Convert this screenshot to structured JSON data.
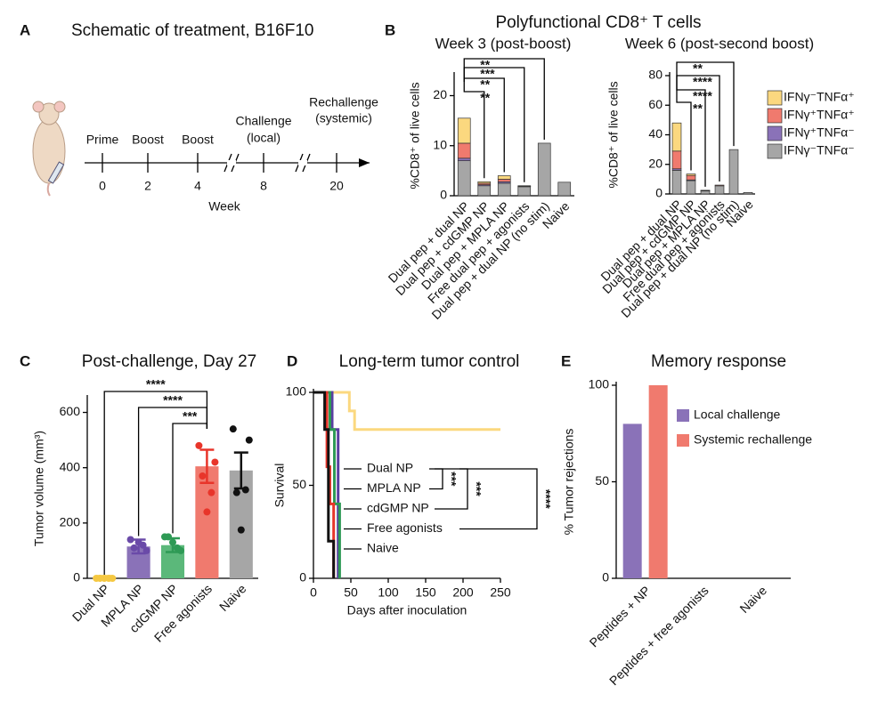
{
  "schematic": {
    "panel": "A",
    "title": "Schematic of treatment, B16F10",
    "axis_label": "Week",
    "events": [
      {
        "label": [
          "Prime"
        ],
        "week": 0
      },
      {
        "label": [
          "Boost"
        ],
        "week": 2
      },
      {
        "label": [
          "Boost"
        ],
        "week": 4
      },
      {
        "label": [
          "Challenge",
          "(local)"
        ],
        "week": 8
      },
      {
        "label": [
          "Rechallenge",
          "(systemic)"
        ],
        "week": 20
      }
    ]
  },
  "panel_b": {
    "panel": "B",
    "title": "Polyfunctional CD8⁺ T cells"
  },
  "chart_data": [
    {
      "type": "stacked_bar",
      "title": "Week 3 (post-boost)",
      "ylabel": "%CD8⁺ of live cells",
      "categories": [
        "Dual pep + dual NP",
        "Dual pep + cdGMP NP",
        "Dual pep + MPLA NP",
        "Free dual pep + agonists",
        "Dual pep + dual NP (no stim)",
        "Naive"
      ],
      "series": [
        {
          "name": "IFNγ⁻TNFα⁻",
          "color": "#a6a6a6",
          "values": [
            7,
            2,
            2.5,
            1.8,
            10.5,
            2.7
          ]
        },
        {
          "name": "IFNγ⁺TNFα⁻",
          "color": "#8a72b8",
          "values": [
            0.5,
            0.2,
            0.3,
            0.1,
            0,
            0
          ]
        },
        {
          "name": "IFNγ⁺TNFα⁺",
          "color": "#f07a6e",
          "values": [
            3,
            0.3,
            0.5,
            0.05,
            0,
            0
          ]
        },
        {
          "name": "IFNγ⁻TNFα⁺",
          "color": "#fbd87f",
          "values": [
            5,
            0.3,
            0.7,
            0.05,
            0,
            0
          ]
        }
      ],
      "ylim": [
        0,
        24
      ],
      "yticks": [
        0,
        10,
        20
      ],
      "comparisons": [
        {
          "from": 0,
          "to": 1,
          "label": "**"
        },
        {
          "from": 0,
          "to": 2,
          "label": "**"
        },
        {
          "from": 0,
          "to": 3,
          "label": "***"
        },
        {
          "from": 0,
          "to": 4,
          "label": "**"
        }
      ]
    },
    {
      "type": "stacked_bar",
      "title": "Week 6 (post-second boost)",
      "ylabel": "%CD8⁺ of live cells",
      "categories": [
        "Dual pep + dual NP",
        "Dual pep + cdGMP NP",
        "Dual pep + MPLA NP",
        "Free dual pep + agonists",
        "Dual pep + dual NP (no stim)",
        "Naive"
      ],
      "series": [
        {
          "name": "IFNγ⁻TNFα⁻",
          "color": "#a6a6a6",
          "values": [
            16,
            9,
            2,
            5.5,
            30,
            1
          ]
        },
        {
          "name": "IFNγ⁺TNFα⁻",
          "color": "#8a72b8",
          "values": [
            1,
            0.5,
            0.2,
            0,
            0,
            0
          ]
        },
        {
          "name": "IFNγ⁺TNFα⁺",
          "color": "#f07a6e",
          "values": [
            12,
            3,
            0.2,
            0.5,
            0,
            0
          ]
        },
        {
          "name": "IFNγ⁻TNFα⁺",
          "color": "#fbd87f",
          "values": [
            19,
            1,
            0.1,
            0,
            0,
            0
          ]
        }
      ],
      "ylim": [
        0,
        80
      ],
      "yticks": [
        0,
        20,
        40,
        60,
        80
      ],
      "comparisons": [
        {
          "from": 0,
          "to": 1,
          "label": "**"
        },
        {
          "from": 0,
          "to": 2,
          "label": "****"
        },
        {
          "from": 0,
          "to": 3,
          "label": "****"
        },
        {
          "from": 0,
          "to": 4,
          "label": "**"
        }
      ]
    },
    {
      "type": "bar_scatter",
      "panel": "C",
      "title": "Post-challenge, Day 27",
      "ylabel": "Tumor volume (mm³)",
      "categories": [
        "Dual NP",
        "MPLA NP",
        "cdGMP NP",
        "Free agonists",
        "Naive"
      ],
      "colors": [
        "#fbd87f",
        "#8a72b8",
        "#5bb87a",
        "#f07a6e",
        "#a6a6a6"
      ],
      "point_colors": [
        "#f5c842",
        "#6a4aa8",
        "#2e9a55",
        "#e8352a",
        "#111111"
      ],
      "values": [
        5,
        115,
        120,
        405,
        390
      ],
      "errors": [
        3,
        25,
        25,
        60,
        65
      ],
      "points": [
        [
          0,
          0,
          0,
          0,
          0
        ],
        [
          140,
          100,
          110,
          120,
          130
        ],
        [
          150,
          100,
          150,
          110,
          130
        ],
        [
          480,
          420,
          370,
          310,
          240
        ],
        [
          540,
          500,
          310,
          320,
          175
        ]
      ],
      "ylim": [
        0,
        650
      ],
      "yticks": [
        0,
        200,
        400,
        600
      ],
      "comparisons": [
        {
          "from": 0,
          "to": 3,
          "label": "****"
        },
        {
          "from": 1,
          "to": 3,
          "label": "****"
        },
        {
          "from": 2,
          "to": 3,
          "label": "***"
        }
      ]
    },
    {
      "type": "survival",
      "panel": "D",
      "title": "Long-term tumor control",
      "xlabel": "Days after inoculation",
      "ylabel": "Survival",
      "xlim": [
        0,
        250
      ],
      "xticks": [
        0,
        50,
        100,
        150,
        200,
        250
      ],
      "ylim": [
        0,
        100
      ],
      "yticks": [
        0,
        50,
        100
      ],
      "series": [
        {
          "name": "Dual NP",
          "color": "#fbd87f",
          "x": [
            0,
            48,
            55,
            250
          ],
          "values": [
            100,
            90,
            80,
            80
          ]
        },
        {
          "name": "MPLA NP",
          "color": "#5a3ea0",
          "x": [
            0,
            25,
            33
          ],
          "values": [
            100,
            80,
            0
          ]
        },
        {
          "name": "cdGMP NP",
          "color": "#2e9a55",
          "x": [
            0,
            22,
            28,
            35
          ],
          "values": [
            100,
            80,
            40,
            0
          ]
        },
        {
          "name": "Free agonists",
          "color": "#e8352a",
          "x": [
            0,
            18,
            22,
            27
          ],
          "values": [
            100,
            60,
            40,
            0
          ]
        },
        {
          "name": "Naive",
          "color": "#111111",
          "x": [
            0,
            15,
            20,
            27
          ],
          "values": [
            100,
            80,
            20,
            0
          ]
        }
      ],
      "comparisons": [
        {
          "from": 0,
          "to": 1,
          "label": "***"
        },
        {
          "from": 0,
          "to": 2,
          "label": "***"
        },
        {
          "from": 0,
          "to": 3,
          "label": "****"
        }
      ]
    },
    {
      "type": "grouped_bar",
      "panel": "E",
      "title": "Memory response",
      "ylabel": "% Tumor rejections",
      "categories": [
        "Peptides + NP",
        "Peptides + free agonists",
        "Naive"
      ],
      "series": [
        {
          "name": "Local challenge",
          "color": "#8a72b8",
          "values": [
            80,
            0,
            0
          ]
        },
        {
          "name": "Systemic rechallenge",
          "color": "#f07a6e",
          "values": [
            100,
            0,
            0
          ]
        }
      ],
      "ylim": [
        0,
        100
      ],
      "yticks": [
        0,
        50,
        100
      ]
    }
  ]
}
